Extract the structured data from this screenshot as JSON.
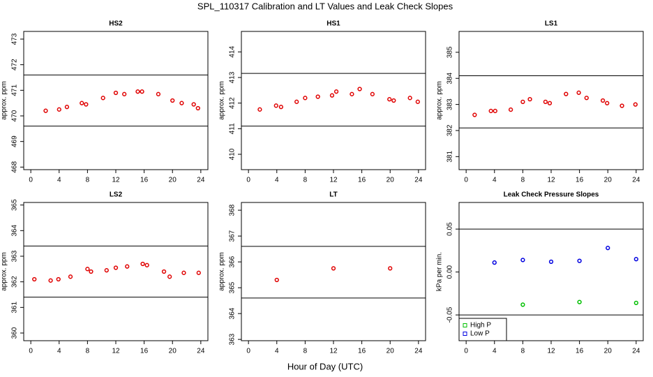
{
  "title": "SPL_110317  Calibration and LT Values and Leak Check Slopes",
  "xlabel": "Hour of Day (UTC)",
  "chart_data": [
    {
      "type": "scatter",
      "title": "HS2",
      "ylabel": "approx. ppm",
      "color": "#e00000",
      "x": [
        2.1,
        4.0,
        5.1,
        7.2,
        7.8,
        10.2,
        12.0,
        13.2,
        15.1,
        15.7,
        18.0,
        20.0,
        21.3,
        23.0,
        23.6
      ],
      "values": [
        470.2,
        470.25,
        470.35,
        470.5,
        470.45,
        470.7,
        470.9,
        470.85,
        470.95,
        470.95,
        470.85,
        470.6,
        470.5,
        470.45,
        470.3
      ],
      "hlines": [
        471.6,
        469.6
      ],
      "xlim": [
        -1,
        25
      ],
      "xticks": [
        0,
        4,
        8,
        12,
        16,
        20,
        24
      ],
      "ylim": [
        467.9,
        473.3
      ],
      "yticks": [
        468,
        469,
        470,
        471,
        472,
        473
      ]
    },
    {
      "type": "scatter",
      "title": "HS1",
      "ylabel": "approx. ppm",
      "color": "#e00000",
      "x": [
        1.6,
        3.9,
        4.6,
        6.8,
        8.0,
        9.8,
        11.8,
        12.4,
        14.6,
        15.7,
        17.5,
        19.9,
        20.5,
        22.8,
        23.9
      ],
      "values": [
        411.75,
        411.9,
        411.85,
        412.05,
        412.2,
        412.25,
        412.3,
        412.45,
        412.35,
        412.55,
        412.35,
        412.15,
        412.1,
        412.2,
        412.05
      ],
      "hlines": [
        413.16,
        411.1
      ],
      "xlim": [
        -1,
        25
      ],
      "xticks": [
        0,
        4,
        8,
        12,
        16,
        20,
        24
      ],
      "ylim": [
        409.4,
        414.8
      ],
      "yticks": [
        410,
        411,
        412,
        413,
        414
      ]
    },
    {
      "type": "scatter",
      "title": "LS1",
      "ylabel": "approx. ppm",
      "color": "#e00000",
      "x": [
        1.2,
        3.5,
        4.1,
        6.3,
        8.0,
        9.0,
        11.2,
        11.8,
        14.1,
        15.9,
        17.0,
        19.3,
        19.9,
        22.0,
        23.9
      ],
      "values": [
        382.6,
        382.75,
        382.75,
        382.8,
        383.1,
        383.2,
        383.1,
        383.05,
        383.4,
        383.45,
        383.25,
        383.15,
        383.05,
        382.95,
        383.0
      ],
      "hlines": [
        384.1,
        382.1
      ],
      "xlim": [
        -1,
        25
      ],
      "xticks": [
        0,
        4,
        8,
        12,
        16,
        20,
        24
      ],
      "ylim": [
        380.5,
        385.8
      ],
      "yticks": [
        381,
        382,
        383,
        384,
        385
      ]
    },
    {
      "type": "scatter",
      "title": "LS2",
      "ylabel": "approx. ppm",
      "color": "#e00000",
      "x": [
        0.5,
        2.8,
        3.9,
        5.6,
        8.0,
        8.5,
        10.7,
        12.0,
        13.6,
        15.8,
        16.4,
        18.8,
        19.6,
        21.6,
        23.7
      ],
      "values": [
        362.1,
        362.05,
        362.1,
        362.2,
        362.5,
        362.4,
        362.45,
        362.55,
        362.6,
        362.7,
        362.65,
        362.4,
        362.2,
        362.35,
        362.35
      ],
      "hlines": [
        363.4,
        361.4
      ],
      "xlim": [
        -1,
        25
      ],
      "xticks": [
        0,
        4,
        8,
        12,
        16,
        20,
        24
      ],
      "ylim": [
        359.7,
        365.1
      ],
      "yticks": [
        360,
        361,
        362,
        363,
        364,
        365
      ]
    },
    {
      "type": "scatter",
      "title": "LT",
      "ylabel": "approx. ppm",
      "color": "#e00000",
      "x": [
        4,
        12,
        20
      ],
      "values": [
        365.3,
        365.75,
        365.75
      ],
      "hlines": [
        366.6,
        364.6
      ],
      "xlim": [
        -1,
        25
      ],
      "xticks": [
        0,
        4,
        8,
        12,
        16,
        20,
        24
      ],
      "ylim": [
        362.95,
        368.3
      ],
      "yticks": [
        363,
        364,
        365,
        366,
        367,
        368
      ]
    },
    {
      "type": "scatter",
      "title": "Leak Check Pressure Slopes",
      "ylabel": "kPa per min.",
      "series": [
        {
          "name": "High P",
          "color": "#00c000",
          "x": [
            8,
            16,
            24
          ],
          "values": [
            -0.038,
            -0.035,
            -0.036
          ]
        },
        {
          "name": "Low P",
          "color": "#0000e0",
          "x": [
            4,
            8,
            12,
            16,
            20,
            24
          ],
          "values": [
            0.011,
            0.014,
            0.012,
            0.013,
            0.028,
            0.015
          ]
        }
      ],
      "hlines": [
        0.05,
        -0.05
      ],
      "legend": "bottomleft",
      "xlim": [
        -1,
        25
      ],
      "xticks": [
        0,
        4,
        8,
        12,
        16,
        20,
        24
      ],
      "ylim": [
        -0.08,
        0.081
      ],
      "yticks": [
        -0.05,
        {
          "value": 0,
          "label": "0.00"
        },
        0.05
      ]
    }
  ]
}
